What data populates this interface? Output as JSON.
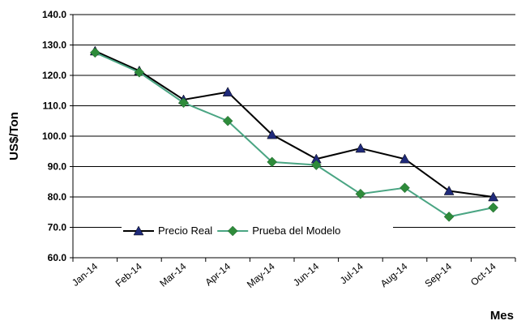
{
  "chart_data": {
    "type": "line",
    "x_label": "Mes",
    "y_label": "US$/Ton",
    "categories": [
      "Jan-14",
      "Feb-14",
      "Mar-14",
      "Apr-14",
      "May-14",
      "Jun-14",
      "Jul-14",
      "Aug-14",
      "Sep-14",
      "Oct-14"
    ],
    "series": [
      {
        "name": "Precio Real",
        "color": "#000000",
        "marker": "triangle",
        "marker_color": "#1f2a7a",
        "values": [
          128,
          121.5,
          112,
          114.5,
          100.5,
          92.5,
          96,
          92.5,
          82,
          80
        ]
      },
      {
        "name": "Prueba del Modelo",
        "color": "#4aa583",
        "marker": "diamond",
        "marker_color": "#2e8b3a",
        "values": [
          127.5,
          121,
          111,
          105,
          91.5,
          90.5,
          81,
          83,
          73.5,
          76.5
        ]
      }
    ],
    "ylim": [
      60,
      140
    ],
    "yticks": [
      {
        "value": 60,
        "label": "60.0"
      },
      {
        "value": 70,
        "label": "70.0"
      },
      {
        "value": 80,
        "label": "80.0"
      },
      {
        "value": 90,
        "label": "90.0"
      },
      {
        "value": 100,
        "label": "100.0"
      },
      {
        "value": 110,
        "label": "110.0"
      },
      {
        "value": 120,
        "label": "120.0"
      },
      {
        "value": 130,
        "label": "130.0"
      },
      {
        "value": 140,
        "label": "140.0"
      }
    ],
    "grid": true,
    "legend": "bottom-left"
  }
}
